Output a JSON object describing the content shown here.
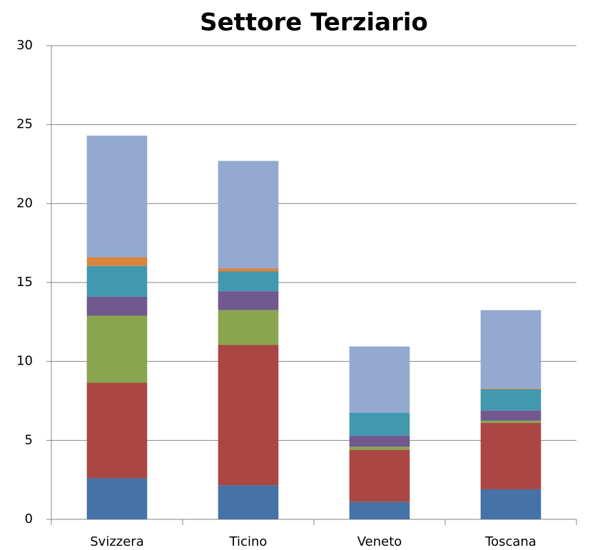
{
  "chart_data": {
    "type": "stacked_bar",
    "title": "Settore Terziario",
    "categories": [
      "Svizzera",
      "Ticino",
      "Veneto",
      "Toscana"
    ],
    "series": [
      {
        "color": "#4572a7",
        "values": [
          2.6,
          2.15,
          1.1,
          1.9
        ]
      },
      {
        "color": "#aa4643",
        "values": [
          6.05,
          8.9,
          3.3,
          4.2
        ]
      },
      {
        "color": "#89a54e",
        "values": [
          4.25,
          2.2,
          0.2,
          0.15
        ]
      },
      {
        "color": "#71588f",
        "values": [
          1.2,
          1.2,
          0.7,
          0.65
        ]
      },
      {
        "color": "#4198af",
        "values": [
          1.95,
          1.25,
          1.45,
          1.35
        ]
      },
      {
        "color": "#db843d",
        "values": [
          0.55,
          0.2,
          0,
          0.05
        ]
      },
      {
        "color": "#93a9cf",
        "values": [
          7.7,
          6.8,
          4.2,
          4.95
        ]
      }
    ],
    "ylim": [
      0,
      30
    ],
    "yticks": [
      0,
      5,
      10,
      15,
      20,
      25,
      30
    ],
    "grid": true
  }
}
